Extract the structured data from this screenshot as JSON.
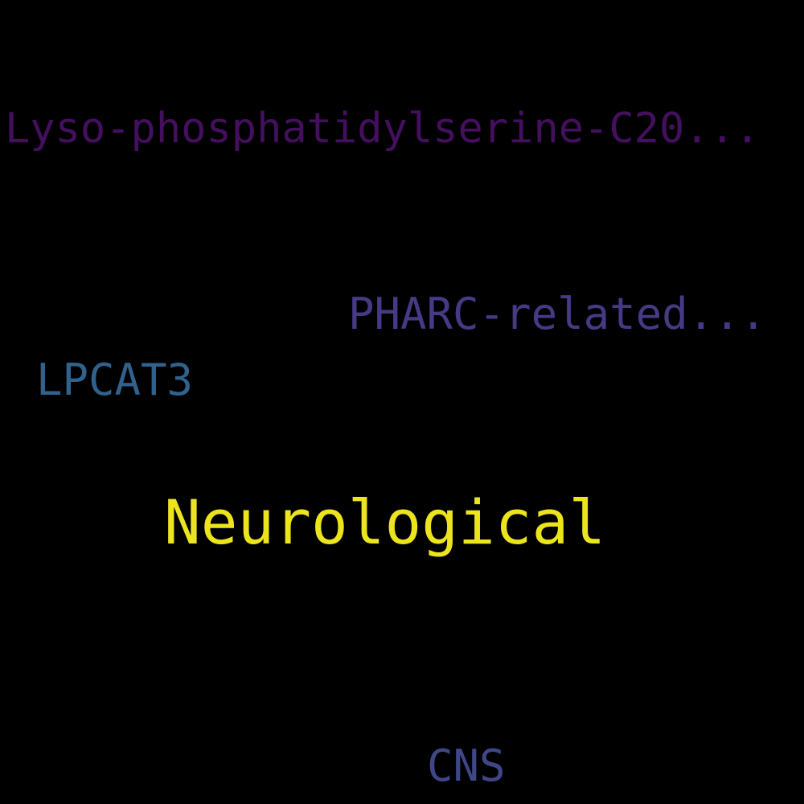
{
  "words": [
    {
      "text": "Lyso-phosphatidylserine-C20...",
      "color": "#440f5e"
    },
    {
      "text": "PHARC-related...",
      "color": "#453a85"
    },
    {
      "text": "LPCAT3",
      "color": "#30628c"
    },
    {
      "text": "Neurological",
      "color": "#ece41d"
    },
    {
      "text": "CNS",
      "color": "#3f4789"
    }
  ]
}
